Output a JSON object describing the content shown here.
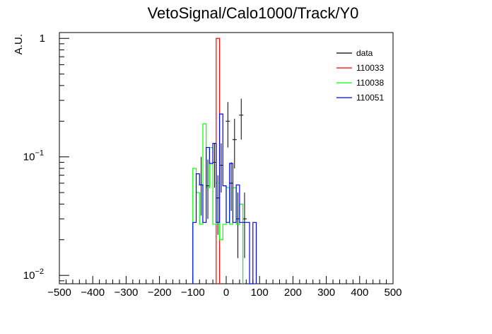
{
  "chart_data": {
    "type": "histogram",
    "title": "VetoSignal/Calo1000/Track/Y0",
    "xlabel": "",
    "ylabel": "A.U.",
    "xlim": [
      -500,
      500
    ],
    "ylim": [
      0.0085,
      1.12
    ],
    "yscale": "log",
    "grid": false,
    "legend_position": "top-right",
    "x_ticks": [
      -500,
      -400,
      -300,
      -200,
      -100,
      0,
      100,
      200,
      300,
      400,
      500
    ],
    "x_tick_labels": [
      "−500",
      "−400",
      "−300",
      "−200",
      "−100",
      "0",
      "100",
      "200",
      "300",
      "400",
      "500"
    ],
    "y_ticks": [
      0.01,
      0.1,
      1
    ],
    "y_tick_labels": [
      {
        "base": "10",
        "exp": "−2"
      },
      {
        "base": "10",
        "exp": "−1"
      },
      {
        "base": "1",
        "exp": ""
      }
    ],
    "bin_width": 10,
    "series": [
      {
        "name": "data",
        "color": "#000000",
        "style": "points",
        "points": [
          {
            "x": -75,
            "y": 0.058,
            "lo": 0.032,
            "hi": 0.1
          },
          {
            "x": -55,
            "y": 0.057,
            "lo": 0.03,
            "hi": 0.095
          },
          {
            "x": -35,
            "y": 0.09,
            "lo": 0.055,
            "hi": 0.13
          },
          {
            "x": -25,
            "y": 0.045,
            "lo": 0.022,
            "hi": 0.07
          },
          {
            "x": -15,
            "y": 0.085,
            "lo": 0.05,
            "hi": 0.13
          },
          {
            "x": 5,
            "y": 0.2,
            "lo": 0.12,
            "hi": 0.29
          },
          {
            "x": 15,
            "y": 0.06,
            "lo": 0.035,
            "hi": 0.09
          },
          {
            "x": 25,
            "y": 0.14,
            "lo": 0.08,
            "hi": 0.21
          },
          {
            "x": 35,
            "y": 0.03,
            "lo": 0.014,
            "hi": 0.05
          },
          {
            "x": 45,
            "y": 0.225,
            "lo": 0.14,
            "hi": 0.31
          },
          {
            "x": 55,
            "y": 0.03,
            "lo": 0.014,
            "hi": 0.05
          }
        ]
      },
      {
        "name": "110033",
        "color": "#ff0000",
        "style": "step",
        "bins": [
          {
            "x0": -30,
            "x1": -20,
            "y": 1.0
          }
        ]
      },
      {
        "name": "110038",
        "color": "#00ff00",
        "style": "step",
        "bins": [
          {
            "x0": -100,
            "x1": -90,
            "y": 0.08
          },
          {
            "x0": -90,
            "x1": -80,
            "y": 0.05
          },
          {
            "x0": -80,
            "x1": -70,
            "y": 0.027
          },
          {
            "x0": -70,
            "x1": -60,
            "y": 0.19
          },
          {
            "x0": -60,
            "x1": -50,
            "y": 0.055
          },
          {
            "x0": -50,
            "x1": -40,
            "y": 0.12
          },
          {
            "x0": -40,
            "x1": -30,
            "y": 0.027
          },
          {
            "x0": -30,
            "x1": -20,
            "y": 0.06
          },
          {
            "x0": -20,
            "x1": -10,
            "y": 0.02
          },
          {
            "x0": -10,
            "x1": 0,
            "y": 0.027
          },
          {
            "x0": 0,
            "x1": 10,
            "y": 0.055
          },
          {
            "x0": 10,
            "x1": 20,
            "y": 0.027
          },
          {
            "x0": 20,
            "x1": 30,
            "y": 0.055
          },
          {
            "x0": 30,
            "x1": 40,
            "y": 0.027
          },
          {
            "x0": 40,
            "x1": 50,
            "y": 0.04
          }
        ]
      },
      {
        "name": "110051",
        "color": "#0000ff",
        "style": "step",
        "bins": [
          {
            "x0": -100,
            "x1": -90,
            "y": 0.028
          },
          {
            "x0": -90,
            "x1": -80,
            "y": 0.072
          },
          {
            "x0": -80,
            "x1": -70,
            "y": 0.058
          },
          {
            "x0": -70,
            "x1": -60,
            "y": 0.028
          },
          {
            "x0": -60,
            "x1": -50,
            "y": 0.12
          },
          {
            "x0": -50,
            "x1": -40,
            "y": 0.088
          },
          {
            "x0": -40,
            "x1": -30,
            "y": 0.13
          },
          {
            "x0": -30,
            "x1": -20,
            "y": 0.028
          },
          {
            "x0": -20,
            "x1": -10,
            "y": 0.23
          },
          {
            "x0": -10,
            "x1": 0,
            "y": 0.057
          },
          {
            "x0": 0,
            "x1": 10,
            "y": 0.028
          },
          {
            "x0": 10,
            "x1": 20,
            "y": 0.088
          },
          {
            "x0": 20,
            "x1": 30,
            "y": 0.028
          },
          {
            "x0": 30,
            "x1": 40,
            "y": 0.058
          },
          {
            "x0": 40,
            "x1": 50,
            "y": 0.028
          },
          {
            "x0": 50,
            "x1": 60,
            "y": 0.028
          },
          {
            "x0": 60,
            "x1": 70,
            "y": 0.028
          },
          {
            "x0": 70,
            "x1": 80,
            "y": 0.0
          },
          {
            "x0": 80,
            "x1": 90,
            "y": 0.028
          }
        ]
      }
    ]
  }
}
